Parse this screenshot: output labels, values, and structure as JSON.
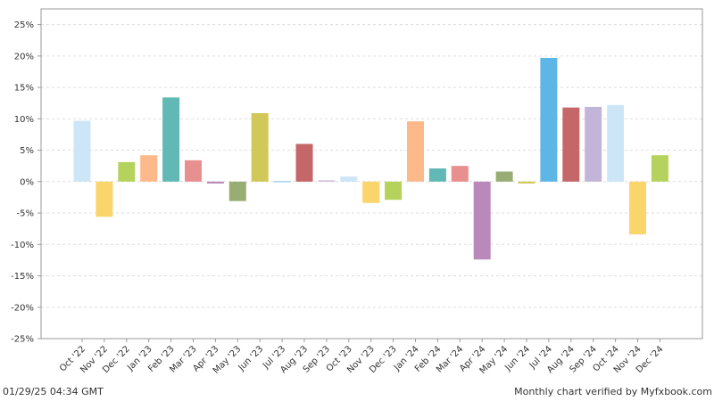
{
  "chart_data": {
    "type": "bar",
    "title": "",
    "xlabel": "",
    "ylabel": "",
    "ylim": [
      -25,
      27.5
    ],
    "y_ticks": [
      -25,
      -20,
      -15,
      -10,
      -5,
      0,
      5,
      10,
      15,
      20,
      25
    ],
    "y_tick_suffix": "%",
    "grid": true,
    "categories": [
      "Oct '22",
      "Nov '22",
      "Dec '22",
      "Jan '23",
      "Feb '23",
      "Mar '23",
      "Apr '23",
      "May '23",
      "Jun '23",
      "Jul '23",
      "Aug '23",
      "Sep '23",
      "Oct '23",
      "Nov '23",
      "Dec '23",
      "Jan '24",
      "Feb '24",
      "Mar '24",
      "Apr '24",
      "May '24",
      "Jun '24",
      "Jul '24",
      "Aug '24",
      "Sep '24",
      "Oct '24",
      "Nov '24",
      "Dec '24"
    ],
    "values": [
      9.7,
      -5.6,
      3.1,
      4.2,
      13.4,
      3.4,
      -0.3,
      -3.1,
      10.9,
      0.1,
      6.0,
      0.2,
      0.8,
      -3.4,
      -2.9,
      9.6,
      2.1,
      2.5,
      -12.4,
      1.6,
      -0.3,
      19.7,
      11.8,
      11.9,
      12.2,
      -8.4,
      4.2
    ],
    "colors": [
      "#cce6f8",
      "#fad56b",
      "#b5d35c",
      "#fdb98a",
      "#62b8b5",
      "#e88f8f",
      "#b98ab9",
      "#98ad74",
      "#d1c85a",
      "#a4d3ef",
      "#c56669",
      "#c9b8dc",
      "#cce6f8",
      "#fad56b",
      "#b5d35c",
      "#fdb98a",
      "#62b8b5",
      "#e88f8f",
      "#b98ab9",
      "#98ad74",
      "#d1c85a",
      "#5db6e5",
      "#c56669",
      "#c3b4da",
      "#cce6f8",
      "#fad56b",
      "#b5d35c"
    ]
  },
  "footer": {
    "timestamp": "01/29/25 04:34 GMT",
    "credit": "Monthly chart verified by Myfxbook.com"
  }
}
